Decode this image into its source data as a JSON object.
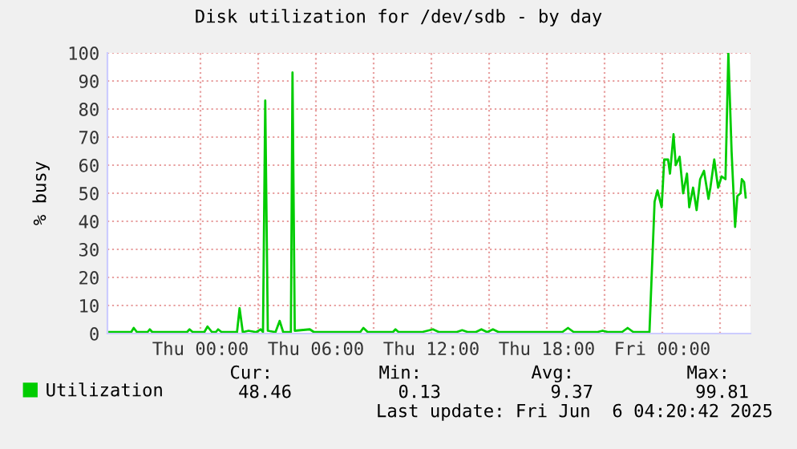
{
  "chart_data": {
    "type": "line",
    "title": "Disk utilization for /dev/sdb - by day",
    "ylabel": "% busy",
    "x": [
      "2025-06-04T19:10",
      "2025-06-04T20:24",
      "2025-06-04T20:32",
      "2025-06-04T20:42",
      "2025-06-04T21:15",
      "2025-06-04T21:22",
      "2025-06-04T21:30",
      "2025-06-04T23:18",
      "2025-06-04T23:26",
      "2025-06-04T23:36",
      "2025-06-05T00:12",
      "2025-06-05T00:22",
      "2025-06-05T00:36",
      "2025-06-05T00:48",
      "2025-06-05T00:55",
      "2025-06-05T01:06",
      "2025-06-05T01:54",
      "2025-06-05T02:02",
      "2025-06-05T02:12",
      "2025-06-05T02:30",
      "2025-06-05T02:54",
      "2025-06-05T03:08",
      "2025-06-05T03:15",
      "2025-06-05T03:22",
      "2025-06-05T03:30",
      "2025-06-05T03:54",
      "2025-06-05T04:07",
      "2025-06-05T04:18",
      "2025-06-05T04:42",
      "2025-06-05T04:47",
      "2025-06-05T04:54",
      "2025-06-05T05:41",
      "2025-06-05T05:54",
      "2025-06-05T08:18",
      "2025-06-05T08:28",
      "2025-06-05T08:42",
      "2025-06-05T10:00",
      "2025-06-05T10:08",
      "2025-06-05T10:18",
      "2025-06-05T11:30",
      "2025-06-05T12:05",
      "2025-06-05T12:24",
      "2025-06-05T13:18",
      "2025-06-05T13:36",
      "2025-06-05T13:54",
      "2025-06-05T14:18",
      "2025-06-05T14:36",
      "2025-06-05T14:54",
      "2025-06-05T15:12",
      "2025-06-05T15:30",
      "2025-06-05T18:48",
      "2025-06-05T19:06",
      "2025-06-05T19:24",
      "2025-06-05T20:36",
      "2025-06-05T20:54",
      "2025-06-05T21:12",
      "2025-06-05T21:54",
      "2025-06-05T22:12",
      "2025-06-05T22:30",
      "2025-06-05T23:20",
      "2025-06-05T23:36",
      "2025-06-05T23:45",
      "2025-06-05T23:58",
      "2025-06-06T00:06",
      "2025-06-06T00:18",
      "2025-06-06T00:24",
      "2025-06-06T00:35",
      "2025-06-06T00:42",
      "2025-06-06T00:54",
      "2025-06-06T01:05",
      "2025-06-06T01:17",
      "2025-06-06T01:24",
      "2025-06-06T01:36",
      "2025-06-06T01:47",
      "2025-06-06T01:58",
      "2025-06-06T02:10",
      "2025-06-06T02:24",
      "2025-06-06T02:30",
      "2025-06-06T02:42",
      "2025-06-06T02:54",
      "2025-06-06T03:05",
      "2025-06-06T03:17",
      "2025-06-06T03:26",
      "2025-06-06T03:36",
      "2025-06-06T03:47",
      "2025-06-06T03:54",
      "2025-06-06T04:04",
      "2025-06-06T04:08",
      "2025-06-06T04:15",
      "2025-06-06T04:20"
    ],
    "series": [
      {
        "name": "Utilization",
        "color": "#00cc00",
        "values": [
          0.5,
          0.5,
          2,
          0.5,
          0.5,
          1.5,
          0.5,
          0.5,
          1.5,
          0.5,
          0.5,
          2.5,
          0.5,
          0.5,
          1.5,
          0.5,
          0.5,
          9,
          0.5,
          1,
          0.5,
          1.5,
          0.5,
          83,
          1,
          0.5,
          4.5,
          0.5,
          0.5,
          93,
          1,
          1.5,
          0.5,
          0.5,
          2,
          0.5,
          0.5,
          1.5,
          0.5,
          0.5,
          1.5,
          0.5,
          0.5,
          1.2,
          0.5,
          0.5,
          1.5,
          0.5,
          1.5,
          0.5,
          0.5,
          2,
          0.5,
          0.5,
          1,
          0.5,
          0.5,
          2,
          0.5,
          0.5,
          47,
          51,
          45,
          62,
          62,
          57,
          71,
          60,
          63,
          50,
          57,
          45,
          52,
          44,
          55,
          58,
          48,
          52,
          62,
          52,
          56,
          55,
          99.81,
          65,
          38,
          49,
          50,
          55,
          54,
          48.5
        ]
      }
    ],
    "xlim": [
      "2025-06-04T19:10",
      "2025-06-06T04:35"
    ],
    "xticks": [
      {
        "value": "2025-06-05T00:00",
        "label": "Thu 00:00"
      },
      {
        "value": "2025-06-05T03:00",
        "label": null
      },
      {
        "value": "2025-06-05T06:00",
        "label": "Thu 06:00"
      },
      {
        "value": "2025-06-05T09:00",
        "label": null
      },
      {
        "value": "2025-06-05T12:00",
        "label": "Thu 12:00"
      },
      {
        "value": "2025-06-05T15:00",
        "label": null
      },
      {
        "value": "2025-06-05T18:00",
        "label": "Thu 18:00"
      },
      {
        "value": "2025-06-05T21:00",
        "label": null
      },
      {
        "value": "2025-06-06T00:00",
        "label": "Fri 00:00"
      },
      {
        "value": "2025-06-06T03:00",
        "label": null
      }
    ],
    "ylim": [
      0,
      100
    ],
    "yticks": [
      0,
      10,
      20,
      30,
      40,
      50,
      60,
      70,
      80,
      90,
      100
    ],
    "grid": true,
    "legend": "bottom left",
    "marker": "none",
    "line_style": "solid",
    "annotations": [
      "Cur:",
      "48.46",
      "Min:",
      "0.13",
      "Avg:",
      "9.37",
      "Max:",
      "99.81",
      "Last update: Fri Jun  6 04:20:42 2025"
    ]
  }
}
